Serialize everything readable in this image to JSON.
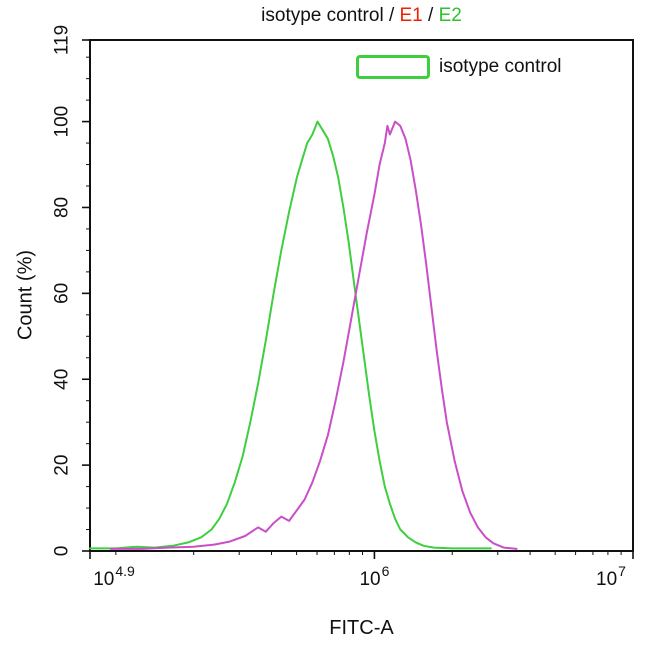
{
  "figure": {
    "background": "#ffffff"
  },
  "title": {
    "segments": [
      {
        "text": "isotype control / ",
        "color": "#111111"
      },
      {
        "text": "E1",
        "color": "#ee2200"
      },
      {
        "text": " / ",
        "color": "#111111"
      },
      {
        "text": "E2",
        "color": "#2fbf2f"
      }
    ]
  },
  "legend": {
    "items": [
      {
        "label": "isotype control",
        "swatch_color": "#3fce3f"
      }
    ]
  },
  "chart_data": {
    "type": "line",
    "title": "isotype control / E1 / E2",
    "xlabel": "FITC-A",
    "ylabel": "Count (%)",
    "x_scale": "log10",
    "xlim_log": [
      4.9,
      7
    ],
    "ylim": [
      0,
      119
    ],
    "grid": false,
    "legend_position": "top-right-inside",
    "xticks": [
      {
        "log": 4.9,
        "base": "10",
        "exp": "4.9"
      },
      {
        "log": 6.0,
        "base": "10",
        "exp": "6"
      },
      {
        "log": 7.0,
        "base": "10",
        "exp": "7"
      }
    ],
    "x_minor_log": [
      5.0,
      5.301,
      5.477,
      5.602,
      5.699,
      5.778,
      5.845,
      5.903,
      5.954,
      6.301,
      6.477,
      6.602,
      6.699,
      6.778,
      6.845,
      6.903,
      6.954
    ],
    "yticks": [
      0,
      20,
      40,
      60,
      80,
      100,
      119
    ],
    "y_minor_step": 5,
    "axis_color": "#111111",
    "series": [
      {
        "name": "isotype control",
        "color": "#3fce3f",
        "points": [
          [
            4.9,
            0.6
          ],
          [
            5.0,
            0.6
          ],
          [
            5.08,
            1.0
          ],
          [
            5.15,
            0.8
          ],
          [
            5.22,
            1.2
          ],
          [
            5.28,
            2.0
          ],
          [
            5.33,
            3.2
          ],
          [
            5.37,
            5.0
          ],
          [
            5.4,
            7.5
          ],
          [
            5.43,
            11
          ],
          [
            5.46,
            16
          ],
          [
            5.49,
            22
          ],
          [
            5.52,
            30
          ],
          [
            5.55,
            39
          ],
          [
            5.58,
            49
          ],
          [
            5.61,
            60
          ],
          [
            5.64,
            70
          ],
          [
            5.67,
            79
          ],
          [
            5.7,
            87
          ],
          [
            5.72,
            91
          ],
          [
            5.74,
            95
          ],
          [
            5.76,
            97
          ],
          [
            5.78,
            100
          ],
          [
            5.8,
            98
          ],
          [
            5.82,
            96
          ],
          [
            5.84,
            92
          ],
          [
            5.86,
            87
          ],
          [
            5.88,
            80
          ],
          [
            5.9,
            72
          ],
          [
            5.92,
            63
          ],
          [
            5.94,
            54
          ],
          [
            5.96,
            45
          ],
          [
            5.98,
            36
          ],
          [
            6.0,
            28
          ],
          [
            6.02,
            21
          ],
          [
            6.04,
            15
          ],
          [
            6.06,
            11
          ],
          [
            6.08,
            7.5
          ],
          [
            6.1,
            5.0
          ],
          [
            6.13,
            3.2
          ],
          [
            6.16,
            2.0
          ],
          [
            6.19,
            1.2
          ],
          [
            6.23,
            0.8
          ],
          [
            6.3,
            0.6
          ],
          [
            6.4,
            0.6
          ],
          [
            6.45,
            0.6
          ]
        ]
      },
      {
        "name": "E1",
        "color": "#c94fc9",
        "points": [
          [
            4.98,
            0.5
          ],
          [
            5.1,
            0.5
          ],
          [
            5.2,
            0.8
          ],
          [
            5.3,
            1.0
          ],
          [
            5.38,
            1.5
          ],
          [
            5.44,
            2.2
          ],
          [
            5.5,
            3.5
          ],
          [
            5.55,
            5.5
          ],
          [
            5.58,
            4.5
          ],
          [
            5.61,
            6.5
          ],
          [
            5.64,
            8.0
          ],
          [
            5.67,
            7.0
          ],
          [
            5.7,
            9.5
          ],
          [
            5.73,
            12
          ],
          [
            5.76,
            16
          ],
          [
            5.79,
            21
          ],
          [
            5.82,
            27
          ],
          [
            5.85,
            35
          ],
          [
            5.88,
            44
          ],
          [
            5.91,
            54
          ],
          [
            5.94,
            64
          ],
          [
            5.97,
            74
          ],
          [
            6.0,
            83
          ],
          [
            6.02,
            90
          ],
          [
            6.04,
            95
          ],
          [
            6.05,
            99
          ],
          [
            6.06,
            97
          ],
          [
            6.08,
            100
          ],
          [
            6.1,
            99
          ],
          [
            6.12,
            96
          ],
          [
            6.14,
            91
          ],
          [
            6.16,
            84
          ],
          [
            6.18,
            76
          ],
          [
            6.2,
            67
          ],
          [
            6.22,
            57
          ],
          [
            6.24,
            47
          ],
          [
            6.26,
            38
          ],
          [
            6.28,
            30
          ],
          [
            6.31,
            21
          ],
          [
            6.34,
            14
          ],
          [
            6.37,
            9
          ],
          [
            6.4,
            5.5
          ],
          [
            6.43,
            3.2
          ],
          [
            6.46,
            1.8
          ],
          [
            6.5,
            0.8
          ],
          [
            6.55,
            0.5
          ]
        ]
      }
    ]
  }
}
